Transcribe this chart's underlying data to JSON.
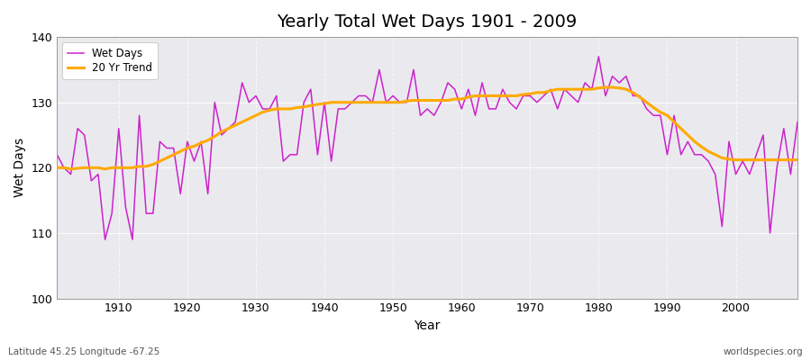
{
  "title": "Yearly Total Wet Days 1901 - 2009",
  "xlabel": "Year",
  "ylabel": "Wet Days",
  "xlim": [
    1901,
    2009
  ],
  "ylim": [
    100,
    140
  ],
  "yticks": [
    100,
    110,
    120,
    130,
    140
  ],
  "xticks": [
    1910,
    1920,
    1930,
    1940,
    1950,
    1960,
    1970,
    1980,
    1990,
    2000
  ],
  "bg_color": "#eaeaee",
  "fig_color": "#ffffff",
  "line_color": "#cc22cc",
  "trend_color": "#ffaa00",
  "annotation_left": "Latitude 45.25 Longitude -67.25",
  "annotation_right": "worldspecies.org",
  "wet_days": {
    "1901": 122,
    "1902": 120,
    "1903": 119,
    "1904": 126,
    "1905": 125,
    "1906": 118,
    "1907": 119,
    "1908": 109,
    "1909": 113,
    "1910": 126,
    "1911": 114,
    "1912": 109,
    "1913": 128,
    "1914": 113,
    "1915": 113,
    "1916": 124,
    "1917": 123,
    "1918": 123,
    "1919": 116,
    "1920": 124,
    "1921": 121,
    "1922": 124,
    "1923": 116,
    "1924": 130,
    "1925": 125,
    "1926": 126,
    "1927": 127,
    "1928": 133,
    "1929": 130,
    "1930": 131,
    "1931": 129,
    "1932": 129,
    "1933": 131,
    "1934": 121,
    "1935": 122,
    "1936": 122,
    "1937": 130,
    "1938": 132,
    "1939": 122,
    "1940": 130,
    "1941": 121,
    "1942": 129,
    "1943": 129,
    "1944": 130,
    "1945": 131,
    "1946": 131,
    "1947": 130,
    "1948": 135,
    "1949": 130,
    "1950": 131,
    "1951": 130,
    "1952": 130,
    "1953": 135,
    "1954": 128,
    "1955": 129,
    "1956": 128,
    "1957": 130,
    "1958": 133,
    "1959": 132,
    "1960": 129,
    "1961": 132,
    "1962": 128,
    "1963": 133,
    "1964": 129,
    "1965": 129,
    "1966": 132,
    "1967": 130,
    "1968": 129,
    "1969": 131,
    "1970": 131,
    "1971": 130,
    "1972": 131,
    "1973": 132,
    "1974": 129,
    "1975": 132,
    "1976": 131,
    "1977": 130,
    "1978": 133,
    "1979": 132,
    "1980": 137,
    "1981": 131,
    "1982": 134,
    "1983": 133,
    "1984": 134,
    "1985": 131,
    "1986": 131,
    "1987": 129,
    "1988": 128,
    "1989": 128,
    "1990": 122,
    "1991": 128,
    "1992": 122,
    "1993": 124,
    "1994": 122,
    "1995": 122,
    "1996": 121,
    "1997": 119,
    "1998": 111,
    "1999": 124,
    "2000": 119,
    "2001": 121,
    "2002": 119,
    "2003": 122,
    "2004": 125,
    "2005": 110,
    "2006": 120,
    "2007": 126,
    "2008": 119,
    "2009": 127
  },
  "trend_days": {
    "1901": 120.0,
    "1902": 120.0,
    "1903": 119.8,
    "1904": 119.9,
    "1905": 120.0,
    "1906": 120.0,
    "1907": 120.0,
    "1908": 119.8,
    "1909": 120.0,
    "1910": 120.0,
    "1911": 120.0,
    "1912": 120.0,
    "1913": 120.2,
    "1914": 120.2,
    "1915": 120.5,
    "1916": 121.0,
    "1917": 121.5,
    "1918": 122.0,
    "1919": 122.5,
    "1920": 123.0,
    "1921": 123.3,
    "1922": 123.8,
    "1923": 124.2,
    "1924": 124.8,
    "1925": 125.5,
    "1926": 126.0,
    "1927": 126.5,
    "1928": 127.0,
    "1929": 127.5,
    "1930": 128.0,
    "1931": 128.5,
    "1932": 128.8,
    "1933": 129.0,
    "1934": 129.0,
    "1935": 129.0,
    "1936": 129.2,
    "1937": 129.3,
    "1938": 129.5,
    "1939": 129.7,
    "1940": 129.8,
    "1941": 130.0,
    "1942": 130.0,
    "1943": 130.0,
    "1944": 130.0,
    "1945": 130.0,
    "1946": 130.0,
    "1947": 130.0,
    "1948": 130.0,
    "1949": 130.0,
    "1950": 130.0,
    "1951": 130.0,
    "1952": 130.2,
    "1953": 130.3,
    "1954": 130.3,
    "1955": 130.3,
    "1956": 130.3,
    "1957": 130.3,
    "1958": 130.3,
    "1959": 130.5,
    "1960": 130.5,
    "1961": 130.8,
    "1962": 131.0,
    "1963": 131.0,
    "1964": 131.0,
    "1965": 131.0,
    "1966": 131.0,
    "1967": 131.0,
    "1968": 131.0,
    "1969": 131.2,
    "1970": 131.3,
    "1971": 131.5,
    "1972": 131.5,
    "1973": 131.8,
    "1974": 132.0,
    "1975": 132.0,
    "1976": 132.0,
    "1977": 132.0,
    "1978": 132.0,
    "1979": 132.0,
    "1980": 132.2,
    "1981": 132.3,
    "1982": 132.3,
    "1983": 132.2,
    "1984": 132.0,
    "1985": 131.5,
    "1986": 130.8,
    "1987": 130.0,
    "1988": 129.2,
    "1989": 128.5,
    "1990": 128.0,
    "1991": 127.0,
    "1992": 126.0,
    "1993": 125.0,
    "1994": 124.0,
    "1995": 123.2,
    "1996": 122.5,
    "1997": 122.0,
    "1998": 121.5,
    "1999": 121.3,
    "2000": 121.2,
    "2001": 121.2,
    "2002": 121.2,
    "2003": 121.2,
    "2004": 121.2,
    "2005": 121.2,
    "2006": 121.2,
    "2007": 121.2,
    "2008": 121.2,
    "2009": 121.2
  }
}
